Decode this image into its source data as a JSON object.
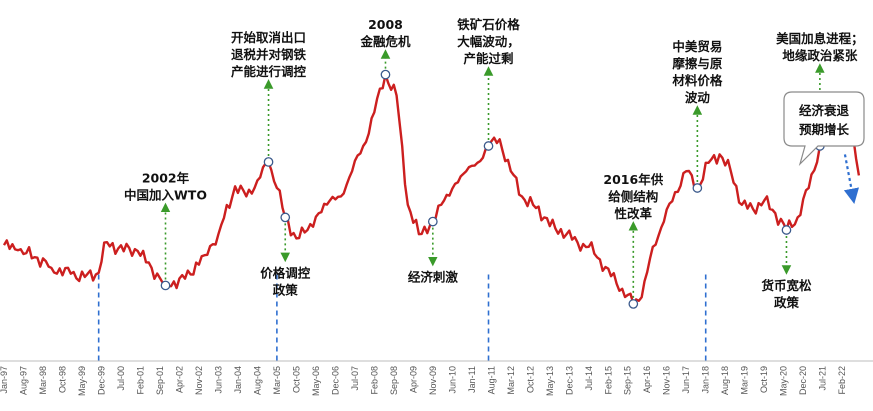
{
  "chart_data": {
    "type": "line",
    "title": "",
    "xlabel": "",
    "ylabel": "",
    "grid": false,
    "legend": "none",
    "line_color": "#cc1f1f",
    "x_ticks": [
      "Jan-97",
      "Aug-97",
      "Mar-98",
      "Oct-98",
      "May-99",
      "Dec-99",
      "Jul-00",
      "Feb-01",
      "Sep-01",
      "Apr-02",
      "Nov-02",
      "Jun-03",
      "Jan-04",
      "Aug-04",
      "Mar-05",
      "Oct-05",
      "May-06",
      "Dec-06",
      "Jul-07",
      "Feb-08",
      "Sep-08",
      "Apr-09",
      "Nov-09",
      "Jun-10",
      "Jan-11",
      "Aug-11",
      "Mar-12",
      "Oct-12",
      "May-13",
      "Dec-13",
      "Jul-14",
      "Feb-15",
      "Sep-15",
      "Apr-16",
      "Nov-16",
      "Jun-17",
      "Jan-18",
      "Aug-18",
      "Mar-19",
      "Oct-19",
      "May-20",
      "Dec-20",
      "Jul-21",
      "Feb-22"
    ],
    "series": [
      {
        "x": [
          "1997-01",
          "1997-06",
          "1998-01",
          "1998-06",
          "1999-01",
          "1999-06",
          "1999-11",
          "2000-01",
          "2000-06",
          "2001-01",
          "2001-06",
          "2001-11",
          "2002-06",
          "2003-01",
          "2003-06",
          "2003-12",
          "2004-04",
          "2004-08",
          "2004-12",
          "2005-03",
          "2005-06",
          "2005-10",
          "2006-02",
          "2006-06",
          "2006-10",
          "2007-02",
          "2007-06",
          "2007-10",
          "2008-02",
          "2008-06",
          "2008-10",
          "2009-02",
          "2009-06",
          "2009-11",
          "2010-03",
          "2010-07",
          "2010-11",
          "2011-03",
          "2011-07",
          "2011-11",
          "2012-03",
          "2012-07",
          "2012-11",
          "2013-03",
          "2013-07",
          "2013-11",
          "2014-03",
          "2014-07",
          "2014-11",
          "2015-03",
          "2015-07",
          "2015-11",
          "2016-02",
          "2016-06",
          "2016-10",
          "2017-02",
          "2017-06",
          "2017-10",
          "2018-02",
          "2018-06",
          "2018-10",
          "2019-02",
          "2019-06",
          "2019-10",
          "2020-02",
          "2020-06",
          "2020-10",
          "2021-02",
          "2021-06",
          "2021-09",
          "2021-12",
          "2022-03",
          "2022-06",
          "2022-08"
        ],
        "values": [
          -2.8,
          -3.4,
          -4.3,
          -5.5,
          -6.2,
          -6.6,
          -6.1,
          -2.5,
          -3.2,
          -3.5,
          -5.5,
          -7.6,
          -6.8,
          -4.0,
          -1.5,
          4.2,
          3.0,
          4.9,
          7.1,
          4.0,
          0.5,
          -2.0,
          -1.0,
          1.0,
          2.5,
          3.0,
          6.0,
          9.0,
          13.0,
          17.5,
          15.0,
          2.0,
          -1.5,
          0.0,
          2.5,
          4.5,
          6.0,
          7.0,
          9.0,
          9.8,
          6.0,
          3.0,
          2.0,
          0.5,
          -0.8,
          -1.5,
          -2.5,
          -3.0,
          -4.5,
          -6.5,
          -8.0,
          -9.8,
          -9.0,
          -3.0,
          0.0,
          3.5,
          6.0,
          4.0,
          7.0,
          8.0,
          6.0,
          2.0,
          1.5,
          2.5,
          1.0,
          -1.0,
          0.5,
          4.0,
          9.0,
          11.5,
          12.0,
          11.0,
          10.0,
          5.5
        ]
      }
    ],
    "arrow": {
      "from": [
        "2022-03",
        8.0
      ],
      "to": [
        "2022-08",
        3.0
      ]
    },
    "events": [
      {
        "x": "2001-11",
        "y": -7.6,
        "label": [
          "2002年",
          "中国加入WTO"
        ],
        "dir": "up"
      },
      {
        "x": "2004-12",
        "y": 7.1,
        "label": [
          "开始取消出口",
          "退税并对钢铁",
          "产能进行调控"
        ],
        "dir": "up"
      },
      {
        "x": "2005-06",
        "y": 0.5,
        "label": [
          "价格调控",
          "政策"
        ],
        "dir": "down"
      },
      {
        "x": "2008-06",
        "y": 17.5,
        "label": [
          "2008",
          "金融危机"
        ],
        "dir": "up"
      },
      {
        "x": "2009-11",
        "y": 0.0,
        "label": [
          "经济刺激"
        ],
        "dir": "down"
      },
      {
        "x": "2011-07",
        "y": 9.0,
        "label": [
          "铁矿石价格",
          "大幅波动，",
          "产能过剩"
        ],
        "dir": "up"
      },
      {
        "x": "2015-11",
        "y": -9.8,
        "label": [
          "2016年供",
          "给侧结构",
          "性改革"
        ],
        "dir": "up"
      },
      {
        "x": "2017-10",
        "y": 4.0,
        "label": [
          "中美贸易",
          "摩擦与原",
          "材料价格",
          "波动"
        ],
        "dir": "up"
      },
      {
        "x": "2020-06",
        "y": -1.0,
        "label": [
          "货币宽松",
          "政策"
        ],
        "dir": "down"
      },
      {
        "x": "2021-06",
        "y": 9.0,
        "label": [
          "美国加息进程；",
          "地缘政治紧张"
        ],
        "dir": "up"
      }
    ],
    "callout": "经济衰退预期增长",
    "callout_lines": [
      "经济衰退",
      "预期增长"
    ],
    "vlines": [
      "1999-11",
      "2005-03",
      "2011-07",
      "2018-01"
    ],
    "xlim": [
      "1997-01",
      "2022-12"
    ],
    "ylim": [
      -16,
      24
    ]
  }
}
